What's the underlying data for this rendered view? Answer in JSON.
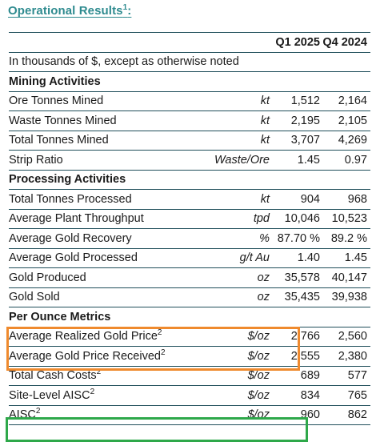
{
  "title": "Operational Results",
  "title_footnote": "1",
  "columns": {
    "q1": "Q1 2025",
    "q4": "Q4 2024"
  },
  "note": "In thousands of $, except as otherwise noted",
  "sections": {
    "mining": "Mining Activities",
    "processing": "Processing Activities",
    "per_ounce": "Per Ounce Metrics"
  },
  "rows": {
    "ore_tonnes_mined": {
      "label": "Ore Tonnes Mined",
      "unit": "kt",
      "q1": "1,512",
      "q4": "2,164"
    },
    "waste_tonnes_mined": {
      "label": "Waste Tonnes Mined",
      "unit": "kt",
      "q1": "2,195",
      "q4": "2,105"
    },
    "total_tonnes_mined": {
      "label": "Total Tonnes Mined",
      "unit": "kt",
      "q1": "3,707",
      "q4": "4,269"
    },
    "strip_ratio": {
      "label": "Strip Ratio",
      "unit": "Waste/Ore",
      "q1": "1.45",
      "q4": "0.97"
    },
    "total_tonnes_processed": {
      "label": "Total Tonnes Processed",
      "unit": "kt",
      "q1": "904",
      "q4": "968"
    },
    "avg_plant_throughput": {
      "label": "Average Plant Throughput",
      "unit": "tpd",
      "q1": "10,046",
      "q4": "10,523"
    },
    "avg_gold_recovery": {
      "label": "Average Gold Recovery",
      "unit": "%",
      "q1": "87.70 %",
      "q4": "89.2 %"
    },
    "avg_gold_processed": {
      "label": "Average Gold Processed",
      "unit": "g/t Au",
      "q1": "1.40",
      "q4": "1.45"
    },
    "gold_produced": {
      "label": "Gold Produced",
      "unit": "oz",
      "q1": "35,578",
      "q4": "40,147"
    },
    "gold_sold": {
      "label": "Gold Sold",
      "unit": "oz",
      "q1": "35,435",
      "q4": "39,938"
    },
    "avg_realized_gold_price": {
      "label": "Average Realized Gold Price",
      "footnote": "2",
      "unit": "$/oz",
      "q1": "2,766",
      "q4": "2,560"
    },
    "avg_gold_price_received": {
      "label": "Average Gold Price Received",
      "footnote": "2",
      "unit": "$/oz",
      "q1": "2,555",
      "q4": "2,380"
    },
    "total_cash_costs": {
      "label": "Total Cash Costs",
      "footnote": "2",
      "unit": "$/oz",
      "q1": "689",
      "q4": "577"
    },
    "site_level_aisc": {
      "label": "Site-Level AISC",
      "footnote": "2",
      "unit": "$/oz",
      "q1": "834",
      "q4": "765"
    },
    "aisc": {
      "label": "AISC",
      "footnote": "2",
      "unit": "$/oz",
      "q1": "960",
      "q4": "862"
    }
  },
  "highlight_colors": {
    "orange": "#ef8a2e",
    "green": "#2ea84a"
  },
  "accent_color": "#2e8b8f",
  "rule_color": "#1f4e5a"
}
